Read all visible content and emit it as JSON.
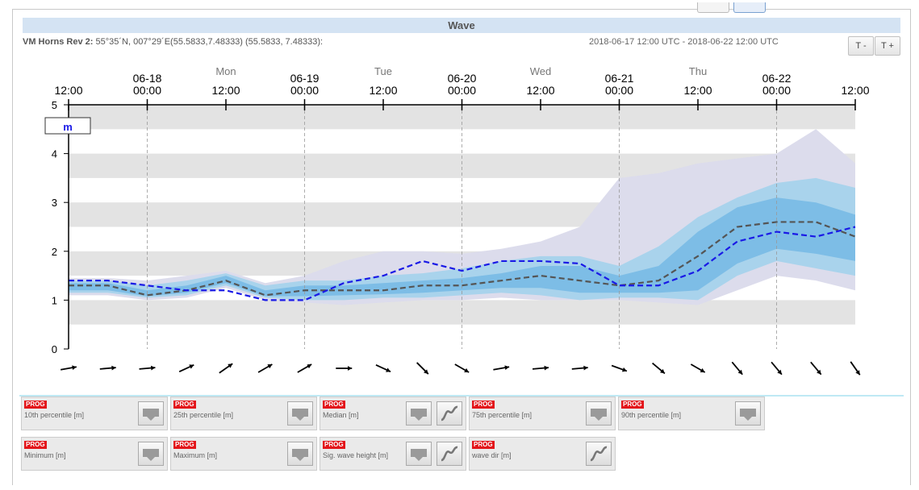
{
  "header": {
    "title": "Wave",
    "location_name": "VM Horns Rev 2:",
    "location_coords": "55°35´N, 007°29´E(55.5833,7.48333) (55.5833, 7.48333):",
    "date_range": "2018-06-17 12:00 UTC - 2018-06-22 12:00 UTC",
    "zoom_out_label": "T -",
    "zoom_in_label": "T +"
  },
  "chart_data": {
    "type": "area",
    "unit_label": "m",
    "ylim": [
      0,
      5
    ],
    "yticks": [
      0,
      1,
      2,
      3,
      4,
      5
    ],
    "xlim_hours": [
      0,
      120
    ],
    "time_ticks": [
      {
        "h": 0,
        "date": "",
        "time": "12:00",
        "day": ""
      },
      {
        "h": 12,
        "date": "06-18",
        "time": "00:00",
        "day": ""
      },
      {
        "h": 24,
        "date": "",
        "time": "12:00",
        "day": "Mon"
      },
      {
        "h": 36,
        "date": "06-19",
        "time": "00:00",
        "day": ""
      },
      {
        "h": 48,
        "date": "",
        "time": "12:00",
        "day": "Tue"
      },
      {
        "h": 60,
        "date": "06-20",
        "time": "00:00",
        "day": ""
      },
      {
        "h": 72,
        "date": "",
        "time": "12:00",
        "day": "Wed"
      },
      {
        "h": 84,
        "date": "06-21",
        "time": "00:00",
        "day": ""
      },
      {
        "h": 96,
        "date": "",
        "time": "12:00",
        "day": "Thu"
      },
      {
        "h": 108,
        "date": "06-22",
        "time": "00:00",
        "day": ""
      },
      {
        "h": 120,
        "date": "",
        "time": "12:00",
        "day": ""
      }
    ],
    "x_hours": [
      0,
      6,
      12,
      18,
      24,
      30,
      36,
      42,
      48,
      54,
      60,
      66,
      72,
      78,
      84,
      90,
      96,
      102,
      108,
      114,
      120
    ],
    "series": [
      {
        "name": "Minimum [m]",
        "role": "min",
        "values": [
          1.1,
          1.1,
          1.0,
          1.05,
          1.25,
          1.0,
          0.95,
          0.9,
          0.95,
          1.0,
          1.0,
          1.05,
          1.0,
          1.0,
          1.0,
          0.95,
          0.9,
          1.2,
          1.5,
          1.4,
          1.2
        ]
      },
      {
        "name": "10th percentile [m]",
        "role": "p10",
        "values": [
          1.15,
          1.15,
          1.05,
          1.1,
          1.3,
          1.05,
          1.0,
          1.0,
          1.05,
          1.05,
          1.1,
          1.15,
          1.1,
          1.0,
          1.05,
          1.05,
          1.0,
          1.5,
          1.8,
          1.65,
          1.5
        ]
      },
      {
        "name": "25th percentile [m]",
        "role": "p25",
        "values": [
          1.2,
          1.2,
          1.08,
          1.15,
          1.35,
          1.08,
          1.08,
          1.1,
          1.12,
          1.15,
          1.2,
          1.25,
          1.25,
          1.15,
          1.15,
          1.15,
          1.2,
          1.75,
          2.05,
          1.95,
          1.8
        ]
      },
      {
        "name": "Median [m]",
        "role": "median",
        "values": [
          1.3,
          1.3,
          1.1,
          1.2,
          1.4,
          1.1,
          1.2,
          1.2,
          1.2,
          1.3,
          1.3,
          1.4,
          1.5,
          1.4,
          1.3,
          1.4,
          1.9,
          2.5,
          2.6,
          2.6,
          2.3
        ]
      },
      {
        "name": "75th percentile [m]",
        "role": "p75",
        "values": [
          1.35,
          1.35,
          1.2,
          1.3,
          1.5,
          1.2,
          1.3,
          1.3,
          1.35,
          1.4,
          1.45,
          1.55,
          1.7,
          1.7,
          1.5,
          1.7,
          2.4,
          2.9,
          3.1,
          3.0,
          2.75
        ]
      },
      {
        "name": "90th percentile [m]",
        "role": "p90",
        "values": [
          1.4,
          1.4,
          1.3,
          1.4,
          1.55,
          1.3,
          1.4,
          1.4,
          1.5,
          1.55,
          1.65,
          1.8,
          1.9,
          1.9,
          1.7,
          2.1,
          2.7,
          3.1,
          3.4,
          3.5,
          3.3
        ]
      },
      {
        "name": "Maximum [m]",
        "role": "max",
        "values": [
          1.45,
          1.45,
          1.4,
          1.5,
          1.6,
          1.35,
          1.5,
          1.8,
          2.0,
          2.0,
          1.95,
          2.05,
          2.2,
          2.5,
          3.5,
          3.6,
          3.8,
          3.9,
          4.0,
          4.5,
          3.8
        ]
      },
      {
        "name": "Sig. wave height [m]",
        "role": "sig",
        "values": [
          1.4,
          1.4,
          1.3,
          1.2,
          1.2,
          1.0,
          1.0,
          1.35,
          1.5,
          1.8,
          1.6,
          1.8,
          1.8,
          1.75,
          1.3,
          1.3,
          1.6,
          2.2,
          2.4,
          2.3,
          2.5
        ]
      }
    ],
    "wave_dir_x_hours": [
      0,
      6,
      12,
      18,
      24,
      30,
      36,
      42,
      48,
      54,
      60,
      66,
      72,
      78,
      84,
      90,
      96,
      102,
      108,
      114,
      120
    ],
    "wave_dir_deg": [
      260,
      265,
      265,
      245,
      235,
      240,
      240,
      270,
      295,
      315,
      300,
      260,
      265,
      265,
      290,
      310,
      300,
      320,
      320,
      320,
      325
    ]
  },
  "legend": [
    {
      "prog": "PROG",
      "label": "10th percentile [m]",
      "curve": false
    },
    {
      "prog": "PROG",
      "label": "25th percentile [m]",
      "curve": false
    },
    {
      "prog": "PROG",
      "label": "Median [m]",
      "curve": true
    },
    {
      "prog": "PROG",
      "label": "75th percentile [m]",
      "curve": false
    },
    {
      "prog": "PROG",
      "label": "90th percentile [m]",
      "curve": false
    },
    {
      "prog": "PROG",
      "label": "Minimum [m]",
      "curve": false
    },
    {
      "prog": "PROG",
      "label": "Maximum [m]",
      "curve": false
    },
    {
      "prog": "PROG",
      "label": "Sig. wave height [m]",
      "curve": true
    },
    {
      "prog": "PROG",
      "label": "wave dir [m]",
      "curve": "only"
    }
  ],
  "colors": {
    "band_outer": "#dcdcec",
    "band_p10_p90": "#a9d3ec",
    "band_p25_p75": "#7dbde6",
    "median_line": "#555555",
    "sig_line": "#1a1ae6",
    "grid_band": "#e3e3e3",
    "title_bar": "#d4e3f3",
    "prog_badge": "#e3151a"
  }
}
